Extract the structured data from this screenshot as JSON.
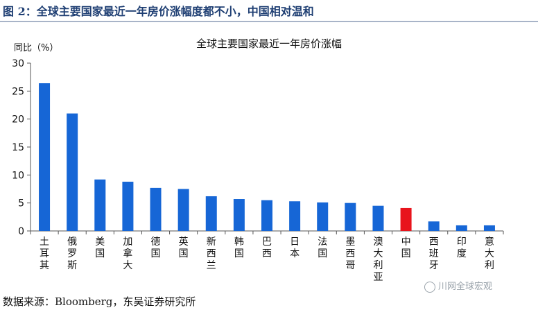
{
  "figure": {
    "title": "图 2：全球主要国家最近一年房价涨幅度都不小，中国相对温和",
    "source": "数据来源：Bloomberg，东吴证券研究所",
    "watermark": "川网全球宏观",
    "watermark_icon": "wechat-icon"
  },
  "chart_data": {
    "type": "bar",
    "title": "全球主要国家最近一年房价涨幅",
    "ylabel": "同比（%）",
    "xlabel": "",
    "ylim": [
      0,
      30
    ],
    "yticks": [
      0,
      5,
      10,
      15,
      20,
      25,
      30
    ],
    "grid": false,
    "categories": [
      "土耳其",
      "俄罗斯",
      "美国",
      "加拿大",
      "德国",
      "英国",
      "新西兰",
      "韩国",
      "巴西",
      "日本",
      "法国",
      "墨西哥",
      "澳大利亚",
      "中国",
      "西班牙",
      "印度",
      "意大利"
    ],
    "values": [
      26.4,
      21.0,
      9.2,
      8.8,
      7.7,
      7.5,
      6.2,
      5.7,
      5.5,
      5.3,
      5.1,
      5.0,
      4.5,
      4.1,
      1.7,
      1.0,
      1.0
    ],
    "colors": {
      "default": "#1666d6",
      "highlight": "#e8141c",
      "highlight_category": "中国"
    }
  }
}
